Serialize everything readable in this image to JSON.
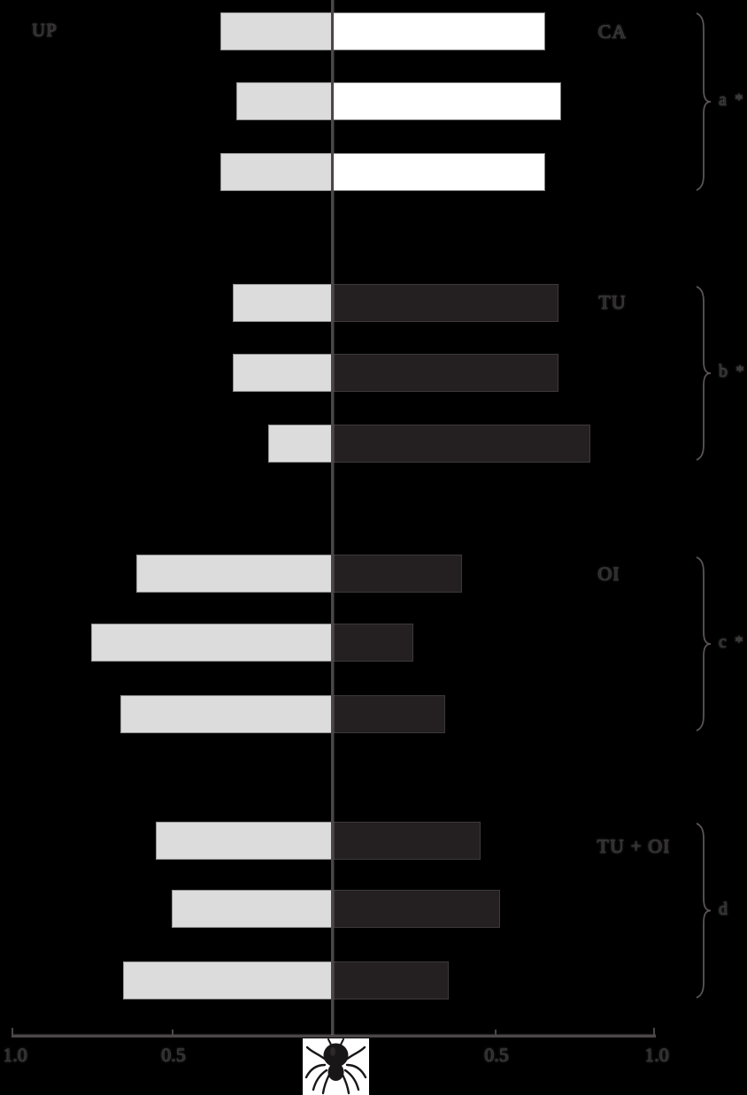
{
  "figure": {
    "top_left_label": "UP",
    "center_icon": "spider"
  },
  "chart_data": {
    "type": "bar",
    "subtype": "diverging horizontal paired bars (two-choice preference test)",
    "title": "",
    "xlabel": "",
    "ylabel": "",
    "axis": {
      "tick_labels": [
        "1.0",
        "0.5",
        "0.5",
        "1.0"
      ],
      "tick_values": [
        1.0,
        0.5,
        0.5,
        1.0
      ],
      "center_value": 0,
      "max_each_side": 1.0,
      "grid": false
    },
    "left_series": {
      "label": "UP",
      "fill": "#dcdcdc",
      "border": "#8f8f8f"
    },
    "groups": [
      {
        "label": "CA",
        "brace_label": "a *",
        "right_fill": "#ffffff",
        "right_border": "#7d7d7d",
        "rows": [
          {
            "left": 0.35,
            "right": 0.66
          },
          {
            "left": 0.3,
            "right": 0.71
          },
          {
            "left": 0.35,
            "right": 0.66
          }
        ]
      },
      {
        "label": "TU",
        "brace_label": "b *",
        "right_fill": "#242021",
        "right_border": "#3d3939",
        "rows": [
          {
            "left": 0.31,
            "right": 0.7
          },
          {
            "left": 0.31,
            "right": 0.7
          },
          {
            "left": 0.2,
            "right": 0.8
          }
        ]
      },
      {
        "label": "OI",
        "brace_label": "c *",
        "right_fill": "#242021",
        "right_border": "#3d3939",
        "rows": [
          {
            "left": 0.61,
            "right": 0.4
          },
          {
            "left": 0.75,
            "right": 0.25
          },
          {
            "left": 0.66,
            "right": 0.35
          }
        ]
      },
      {
        "label": "TU + OI",
        "brace_label": "d",
        "right_fill": "#242021",
        "right_border": "#3d3939",
        "rows": [
          {
            "left": 0.55,
            "right": 0.46
          },
          {
            "left": 0.5,
            "right": 0.52
          },
          {
            "left": 0.65,
            "right": 0.36
          }
        ]
      }
    ],
    "colors": {
      "background": "#000000",
      "left_bar": "#dcdcdc",
      "left_bar_border": "#8f8f8f",
      "axis_line": "#4c4648"
    },
    "legend_position": "none"
  }
}
